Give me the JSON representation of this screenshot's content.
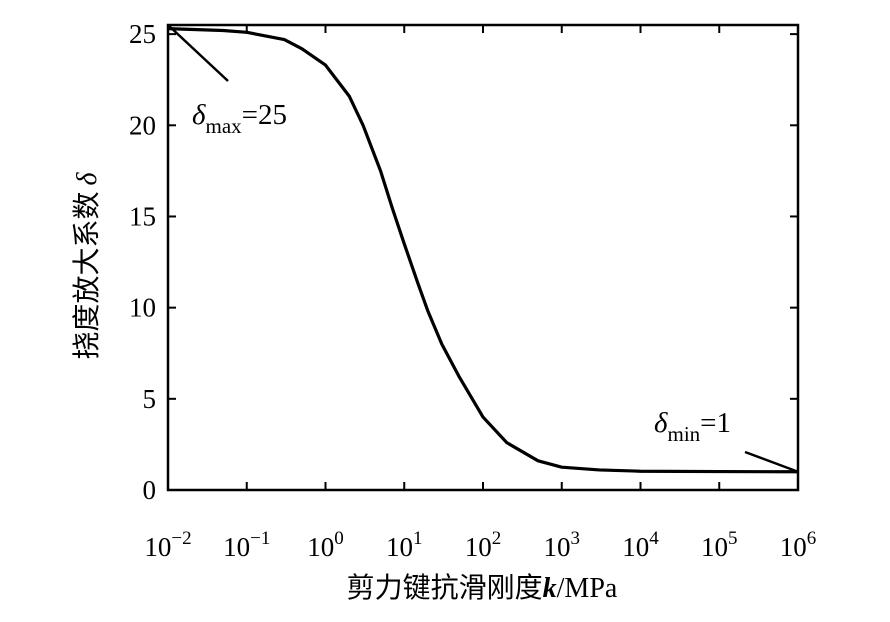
{
  "chart_data": {
    "type": "line",
    "title": "",
    "xlabel_prefix": "剪力键抗滑刚度",
    "xlabel_var": "k",
    "xlabel_unit": "/MPa",
    "ylabel_prefix": "挠度放大系数",
    "ylabel_var": "δ",
    "x_scale": "log",
    "xlim": [
      0.01,
      1000000
    ],
    "ylim": [
      0,
      25.5
    ],
    "x_ticks": [
      {
        "base": "10",
        "exp": "−2"
      },
      {
        "base": "10",
        "exp": "−1"
      },
      {
        "base": "10",
        "exp": "0"
      },
      {
        "base": "10",
        "exp": "1"
      },
      {
        "base": "10",
        "exp": "2"
      },
      {
        "base": "10",
        "exp": "3"
      },
      {
        "base": "10",
        "exp": "4"
      },
      {
        "base": "10",
        "exp": "5"
      },
      {
        "base": "10",
        "exp": "6"
      }
    ],
    "x_tick_values": [
      0.01,
      0.1,
      1,
      10,
      100,
      1000,
      10000,
      100000,
      1000000
    ],
    "y_ticks": [
      "0",
      "5",
      "10",
      "15",
      "20",
      "25"
    ],
    "y_tick_values": [
      0,
      5,
      10,
      15,
      20,
      25
    ],
    "grid": false,
    "series": [
      {
        "color": "#000000",
        "x": [
          0.01,
          0.05,
          0.1,
          0.3,
          0.5,
          1,
          2,
          3,
          5,
          7,
          10,
          15,
          20,
          30,
          50,
          100,
          200,
          500,
          1000,
          3000,
          10000,
          100000,
          1000000
        ],
        "y": [
          25.3,
          25.2,
          25.1,
          24.7,
          24.2,
          23.3,
          21.6,
          20.0,
          17.5,
          15.5,
          13.5,
          11.3,
          9.8,
          8.0,
          6.2,
          4.0,
          2.6,
          1.6,
          1.25,
          1.1,
          1.03,
          1.01,
          1.0
        ]
      }
    ],
    "annotations": [
      {
        "symbol": "δ",
        "sub": "max",
        "text": "=25",
        "target": {
          "x": 0.01,
          "y": 25.5
        }
      },
      {
        "symbol": "δ",
        "sub": "min",
        "text": "=1",
        "target": {
          "x": 1000000,
          "y": 1
        }
      }
    ]
  }
}
